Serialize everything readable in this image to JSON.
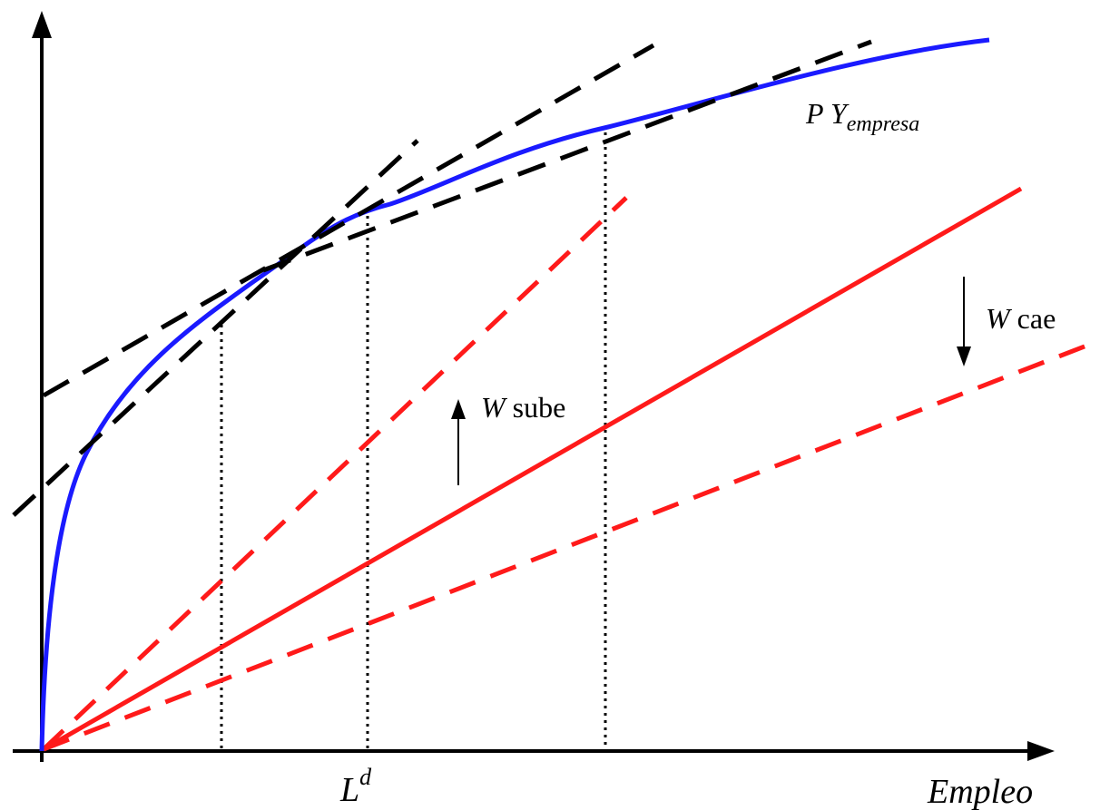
{
  "labels": {
    "curve": {
      "main": "P Y",
      "sub": "empresa"
    },
    "wage_up": {
      "symbol": "W",
      "text": " sube"
    },
    "wage_down": {
      "symbol": "W",
      "text": " cae"
    },
    "labor_demand": {
      "main": "L",
      "sup": "d"
    },
    "x_axis": "Empleo"
  },
  "colors": {
    "curve": "#1a1aff",
    "wage_line": "#ff1a1a",
    "tangent": "#000000",
    "axis": "#000000"
  }
}
